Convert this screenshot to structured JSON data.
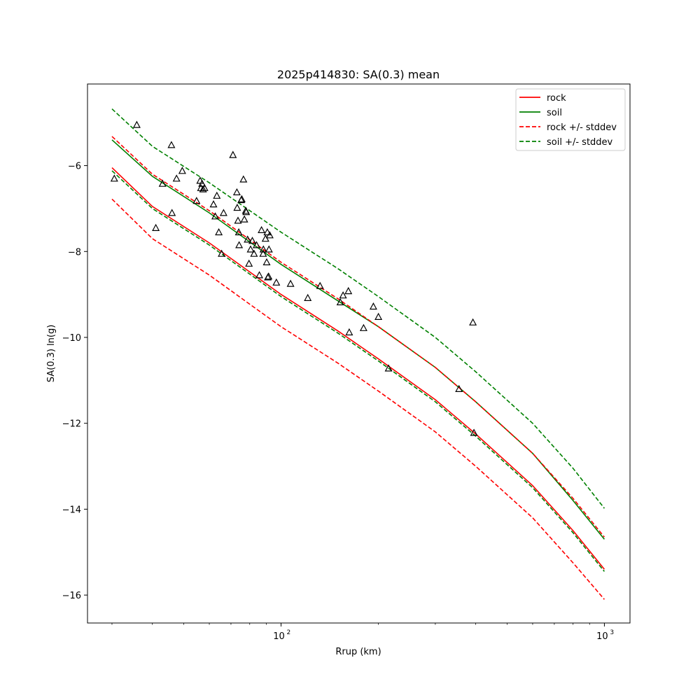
{
  "chart_data": {
    "type": "scatter",
    "title": "2025p414830: SA(0.3) mean",
    "xlabel": "Rrup (km)",
    "ylabel": "SA(0.3) ln(g)",
    "xscale": "log",
    "xlim": [
      25.2,
      1200
    ],
    "ylim": [
      -16.65,
      -4.1
    ],
    "xticks": [
      {
        "value": 100,
        "label": "10",
        "sup": "2"
      },
      {
        "value": 1000,
        "label": "10",
        "sup": "3"
      }
    ],
    "yticks": [
      -16,
      -14,
      -12,
      -10,
      -8,
      -6
    ],
    "legend_position": "top-right",
    "grid": false,
    "colors": {
      "rock": "#ff0000",
      "soil": "#008000",
      "points": "#000000"
    },
    "lines": [
      {
        "name": "rock",
        "style": "solid",
        "color": "#ff0000",
        "x": [
          30,
          40,
          60,
          100,
          150,
          200,
          300,
          400,
          600,
          800,
          1000
        ],
        "y": [
          -6.05,
          -6.95,
          -7.8,
          -9.0,
          -9.85,
          -10.5,
          -11.45,
          -12.25,
          -13.45,
          -14.5,
          -15.4
        ]
      },
      {
        "name": "soil",
        "style": "solid",
        "color": "#008000",
        "x": [
          30,
          40,
          60,
          100,
          150,
          200,
          300,
          400,
          600,
          800,
          1000
        ],
        "y": [
          -5.4,
          -6.25,
          -7.1,
          -8.3,
          -9.15,
          -9.75,
          -10.7,
          -11.5,
          -12.7,
          -13.8,
          -14.7
        ]
      },
      {
        "name": "rock +/- stddev",
        "style": "dashed",
        "color": "#ff0000",
        "x": [
          30,
          40,
          60,
          100,
          150,
          200,
          300,
          400,
          600,
          800,
          1000
        ],
        "y": [
          -5.32,
          -6.2,
          -7.05,
          -8.25,
          -9.1,
          -9.75,
          -10.7,
          -11.5,
          -12.7,
          -13.75,
          -14.65
        ]
      },
      {
        "name": "rock +/- stddev",
        "style": "dashed",
        "color": "#ff0000",
        "x": [
          30,
          40,
          60,
          100,
          150,
          200,
          300,
          400,
          600,
          800,
          1000
        ],
        "y": [
          -6.78,
          -7.7,
          -8.55,
          -9.75,
          -10.6,
          -11.25,
          -12.2,
          -13.0,
          -14.2,
          -15.25,
          -16.1
        ]
      },
      {
        "name": "soil +/- stddev",
        "style": "dashed",
        "color": "#008000",
        "x": [
          30,
          40,
          60,
          100,
          150,
          200,
          300,
          400,
          600,
          800,
          1000
        ],
        "y": [
          -4.68,
          -5.55,
          -6.4,
          -7.55,
          -8.4,
          -9.05,
          -10.0,
          -10.8,
          -12.0,
          -13.05,
          -13.98
        ]
      },
      {
        "name": "soil +/- stddev",
        "style": "dashed",
        "color": "#008000",
        "x": [
          30,
          40,
          60,
          100,
          150,
          200,
          300,
          400,
          600,
          800,
          1000
        ],
        "y": [
          -6.12,
          -7.0,
          -7.85,
          -9.05,
          -9.9,
          -10.55,
          -11.5,
          -12.3,
          -13.5,
          -14.55,
          -15.45
        ]
      }
    ],
    "legend": [
      {
        "label": "rock",
        "style": "solid",
        "color": "#ff0000"
      },
      {
        "label": "soil",
        "style": "solid",
        "color": "#008000"
      },
      {
        "label": "rock +/- stddev",
        "style": "dashed",
        "color": "#ff0000"
      },
      {
        "label": "soil +/- stddev",
        "style": "dashed",
        "color": "#008000"
      }
    ],
    "points": {
      "marker": "triangle",
      "x": [
        30.5,
        35.8,
        41,
        43,
        45.8,
        46,
        47.5,
        49.5,
        54.8,
        56.2,
        56.5,
        57,
        57.4,
        58,
        61.8,
        62.6,
        63.3,
        64.2,
        65.5,
        66.4,
        71,
        73,
        73.2,
        73.6,
        74,
        74.2,
        75.3,
        75.6,
        76.5,
        77,
        77.8,
        78,
        78.8,
        79.6,
        80.5,
        81.5,
        82.5,
        84,
        85.7,
        87,
        88,
        88.2,
        89.5,
        90.3,
        90.7,
        91,
        91.5,
        91.8,
        92.3,
        96.7,
        107,
        121,
        132,
        152.5,
        155.5,
        161.5,
        162.5,
        180,
        193,
        200,
        215,
        355,
        392,
        395
      ],
      "y": [
        -6.3,
        -5.05,
        -7.45,
        -6.42,
        -5.52,
        -7.1,
        -6.3,
        -6.12,
        -6.82,
        -6.35,
        -6.52,
        -6.42,
        -6.55,
        -6.52,
        -6.9,
        -7.18,
        -6.7,
        -7.55,
        -8.05,
        -7.1,
        -5.75,
        -6.62,
        -6.98,
        -7.28,
        -7.55,
        -7.85,
        -6.8,
        -6.78,
        -6.32,
        -7.25,
        -7.05,
        -7.08,
        -7.72,
        -8.28,
        -7.95,
        -7.75,
        -8.05,
        -7.85,
        -8.55,
        -7.5,
        -8.05,
        -7.95,
        -7.7,
        -8.25,
        -7.55,
        -8.6,
        -8.58,
        -7.95,
        -7.62,
        -8.72,
        -8.75,
        -9.08,
        -8.8,
        -9.18,
        -9.02,
        -8.92,
        -9.88,
        -9.78,
        -9.28,
        -9.52,
        -10.72,
        -11.2,
        -9.65,
        -12.22
      ]
    }
  }
}
